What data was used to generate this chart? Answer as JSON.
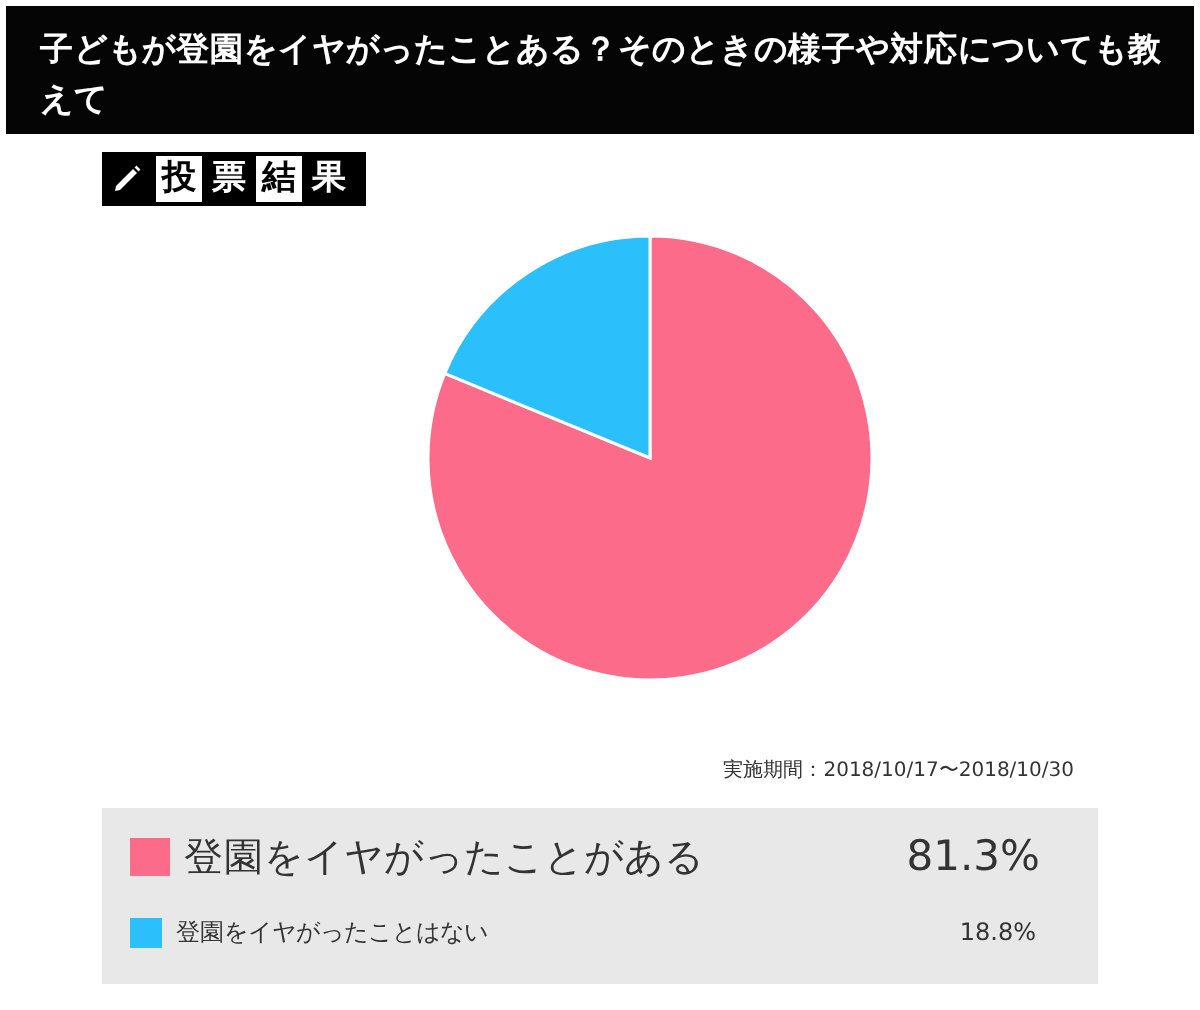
{
  "chart_data": {
    "type": "pie",
    "title": "子どもが登園をイヤがったことある？そのときの様子や対応についても教えて",
    "subtitle": "投票結果",
    "annotations": [
      "実施期間：2018/10/17〜2018/10/30"
    ],
    "categories": [
      "登園をイヤがったことがある",
      "登園をイヤがったことはない"
    ],
    "values": [
      81.3,
      18.8
    ],
    "value_labels": [
      "81.3%",
      "18.8%"
    ],
    "colors": [
      "#fd6b8a",
      "#2bc0fb"
    ],
    "legend": "bottom"
  }
}
